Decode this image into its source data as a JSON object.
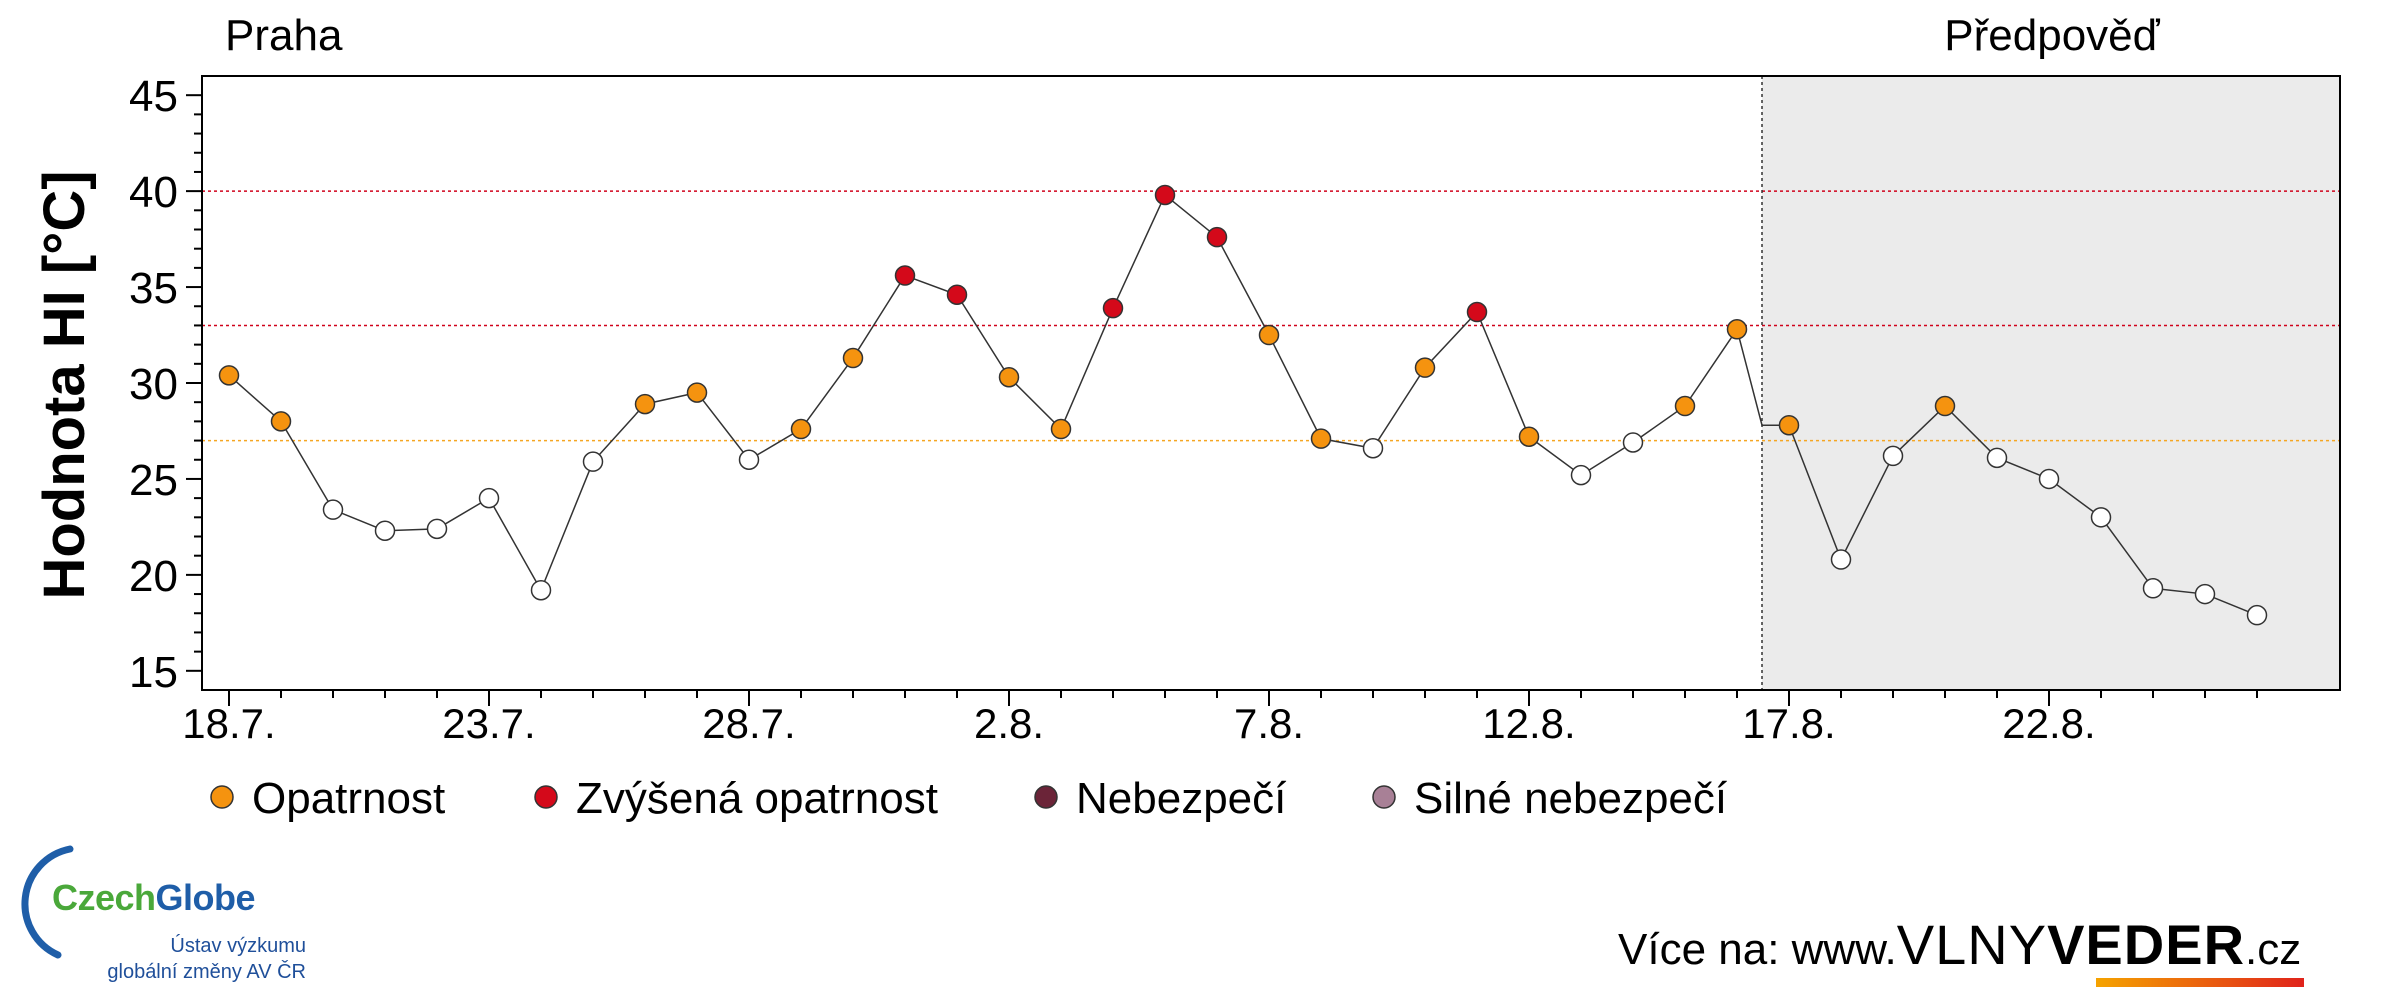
{
  "chart_data": {
    "type": "scatter",
    "location": "Praha",
    "forecast_label": "Předpověď",
    "ylabel": "Hodnota HI [°C]",
    "ylim": [
      14,
      46
    ],
    "yticks": [
      15,
      20,
      25,
      30,
      35,
      40,
      45
    ],
    "x_start": "17.7.",
    "x_end": "27.8.",
    "xticks": [
      "18.7.",
      "23.7.",
      "28.7.",
      "2.8.",
      "7.8.",
      "12.8.",
      "17.8.",
      "22.8."
    ],
    "forecast_start": "17.8.",
    "thresholds": [
      {
        "value": 27,
        "color": "#f5a623"
      },
      {
        "value": 33,
        "color": "#d0021b"
      },
      {
        "value": 40,
        "color": "#d0021b"
      }
    ],
    "dates": [
      "18.7.",
      "19.7.",
      "20.7.",
      "21.7.",
      "22.7.",
      "23.7.",
      "24.7.",
      "25.7.",
      "26.7.",
      "27.7.",
      "28.7.",
      "29.7.",
      "30.7.",
      "31.7.",
      "1.8.",
      "2.8.",
      "3.8.",
      "4.8.",
      "5.8.",
      "6.8.",
      "7.8.",
      "8.8.",
      "9.8.",
      "10.8.",
      "11.8.",
      "12.8.",
      "13.8.",
      "14.8.",
      "15.8.",
      "16.8.",
      "17.8.",
      "18.8.",
      "19.8.",
      "20.8.",
      "21.8.",
      "22.8.",
      "23.8.",
      "24.8.",
      "25.8.",
      "26.8."
    ],
    "values": [
      30.4,
      28.0,
      23.4,
      22.3,
      22.4,
      24.0,
      19.2,
      25.9,
      28.9,
      29.5,
      26.0,
      27.6,
      31.3,
      35.6,
      34.6,
      30.3,
      27.6,
      33.9,
      39.8,
      37.6,
      32.5,
      27.1,
      26.6,
      30.8,
      33.7,
      27.2,
      25.2,
      26.9,
      28.8,
      32.8,
      27.8,
      20.8,
      26.2,
      28.8,
      26.1,
      25.0,
      23.0,
      19.3,
      19.0,
      17.9
    ],
    "extra_point": {
      "date": "17.8.",
      "value": 27.8
    },
    "levels": [
      1,
      1,
      0,
      0,
      0,
      0,
      0,
      0,
      1,
      1,
      0,
      1,
      1,
      2,
      2,
      1,
      1,
      2,
      2,
      2,
      1,
      1,
      0,
      1,
      2,
      1,
      0,
      0,
      1,
      1,
      1,
      0,
      0,
      1,
      0,
      0,
      0,
      0,
      0,
      0
    ],
    "legend": [
      {
        "label": "Opatrnost",
        "color": "#f5930f"
      },
      {
        "label": "Zvýšená opatrnost",
        "color": "#d4091a"
      },
      {
        "label": "Nebezpečí",
        "color": "#6b2438"
      },
      {
        "label": "Silné nebezpečí",
        "color": "#a88096"
      }
    ],
    "no_warning_color": "#ffffff",
    "forecast_bg": "#ebebeb"
  },
  "logo": {
    "name_part1": "Czech",
    "name_part2": "Globe",
    "line1": "Ústav výzkumu",
    "line2": "globální změny AV ČR"
  },
  "footer": {
    "prefix": "Více na: www.",
    "brand1": "VLNY",
    "brand2": "VEDER",
    "suffix": ".cz"
  }
}
